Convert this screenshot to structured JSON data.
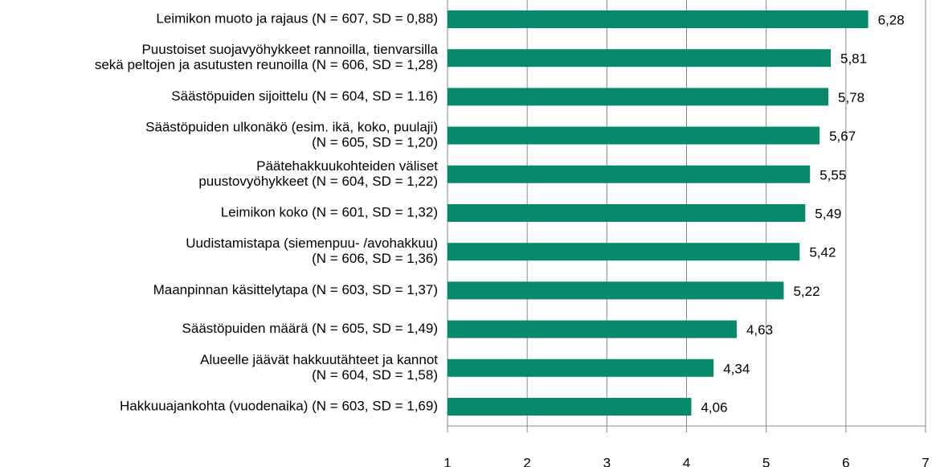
{
  "chart_data": {
    "type": "bar",
    "orientation": "horizontal",
    "categories": [
      [
        "Leimikon muoto ja rajaus (N = 607, SD = 0,88)"
      ],
      [
        "Puustoiset suojavyöhykkeet rannoilla, tienvarsilla",
        "sekä peltojen ja asutusten reunoilla (N = 606, SD = 1,28)"
      ],
      [
        "Säästöpuiden sijoittelu (N = 604, SD = 1.16)"
      ],
      [
        "Säästöpuiden ulkonäkö (esim. ikä, koko, puulaji)",
        "(N = 605, SD = 1,20)"
      ],
      [
        "Päätehakkuukohteiden väliset",
        "puustovyöhykkeet (N = 604, SD = 1,22)"
      ],
      [
        "Leimikon koko (N = 601, SD = 1,32)"
      ],
      [
        "Uudistamistapa (siemenpuu- /avohakkuu)",
        "(N = 606, SD = 1,36)"
      ],
      [
        "Maanpinnan käsittelytapa (N = 603, SD = 1,37)"
      ],
      [
        "Säästöpuiden määrä (N = 605, SD = 1,49)"
      ],
      [
        "Alueelle jäävät hakkuutähteet ja kannot",
        "(N = 604, SD = 1,58)"
      ],
      [
        "Hakkuuajankohta (vuodenaika) (N = 603, SD = 1,69)"
      ]
    ],
    "values": [
      6.28,
      5.81,
      5.78,
      5.67,
      5.55,
      5.49,
      5.42,
      5.22,
      4.63,
      4.34,
      4.06
    ],
    "value_labels": [
      "6,28",
      "5,81",
      "5,78",
      "5,67",
      "5,55",
      "5,49",
      "5,42",
      "5,22",
      "4,63",
      "4,34",
      "4,06"
    ],
    "color": "#078a6b",
    "xlim": [
      1,
      7
    ],
    "xticks": [
      1,
      2,
      3,
      4,
      5,
      6,
      7
    ],
    "grid": true
  }
}
